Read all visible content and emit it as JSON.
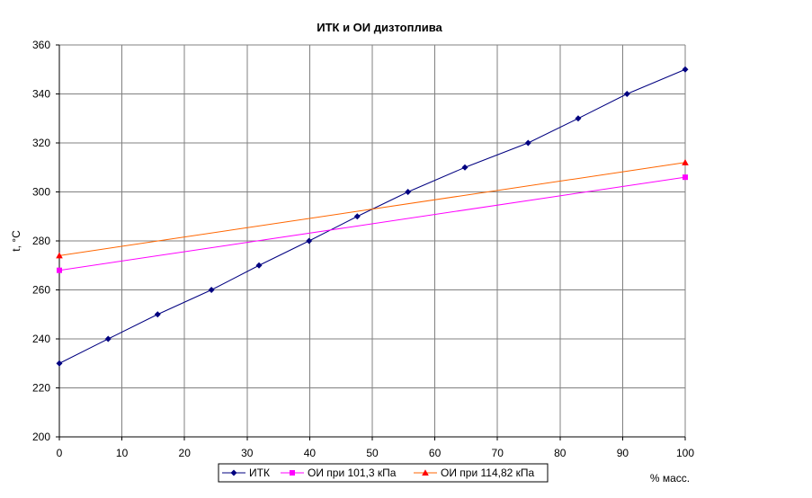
{
  "chart_data": {
    "type": "line",
    "title": "ИТК и ОИ дизтоплива",
    "xlabel": "% масс.",
    "ylabel": "t, °C",
    "xlim": [
      0,
      100
    ],
    "ylim": [
      200,
      360
    ],
    "x_ticks": [
      "0",
      "10",
      "20",
      "30",
      "40",
      "50",
      "60",
      "70",
      "80",
      "90",
      "100"
    ],
    "y_ticks": [
      "200",
      "220",
      "240",
      "260",
      "280",
      "300",
      "320",
      "340",
      "360"
    ],
    "grid": true,
    "legend_position": "bottom",
    "series": [
      {
        "name": "ИТК",
        "color": "#000080",
        "marker": "diamond",
        "x": [
          0,
          7.8,
          15.7,
          24.3,
          31.9,
          39.9,
          47.6,
          55.7,
          64.8,
          74.9,
          82.9,
          90.7,
          100
        ],
        "y": [
          230,
          240,
          250,
          260,
          270,
          280,
          290,
          300,
          310,
          320,
          330,
          340,
          350
        ]
      },
      {
        "name": "ОИ при 101,3 кПа",
        "color": "#ff00ff",
        "marker": "square",
        "x": [
          0,
          100
        ],
        "y": [
          268,
          306
        ]
      },
      {
        "name": "ОИ при 114,82 кПа",
        "color": "#ff6600",
        "marker": "triangle",
        "marker_color": "#ff0000",
        "x": [
          0,
          100
        ],
        "y": [
          274,
          312
        ]
      }
    ]
  }
}
